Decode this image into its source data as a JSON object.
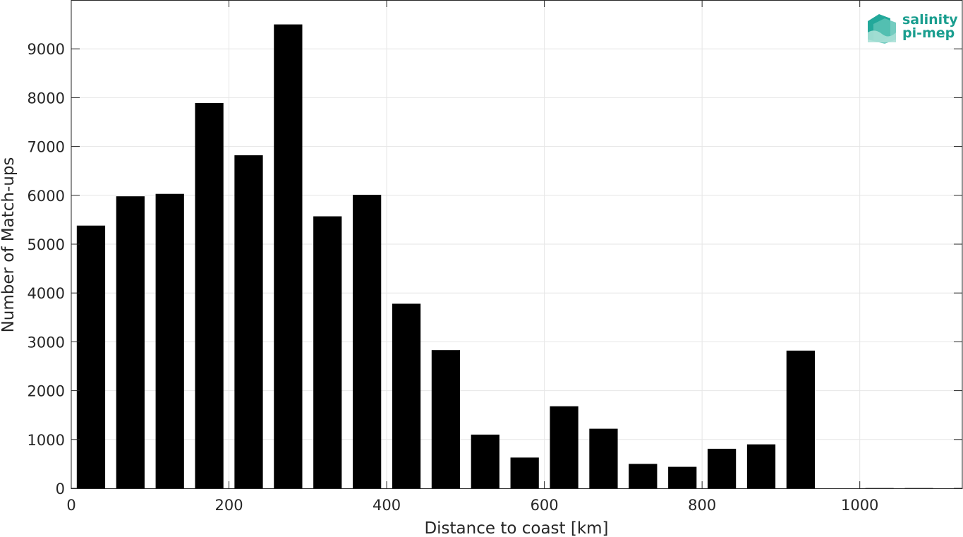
{
  "chart_data": {
    "type": "bar",
    "title": "",
    "xlabel": "Distance to coast [km]",
    "ylabel": "Number of Match-ups",
    "x": [
      25,
      75,
      125,
      175,
      225,
      275,
      325,
      375,
      425,
      475,
      525,
      575,
      625,
      675,
      725,
      775,
      825,
      875,
      925,
      975,
      1025,
      1075
    ],
    "values": [
      5380,
      5980,
      6030,
      7890,
      6820,
      9500,
      5570,
      6010,
      3780,
      2830,
      1100,
      630,
      1680,
      1220,
      500,
      440,
      810,
      900,
      2820,
      0,
      5,
      5
    ],
    "bar_width": 36,
    "xlim": [
      0,
      1130
    ],
    "ylim": [
      0,
      10000
    ],
    "xticks": [
      0,
      200,
      400,
      600,
      800,
      1000
    ],
    "yticks": [
      0,
      1000,
      2000,
      3000,
      4000,
      5000,
      6000,
      7000,
      8000,
      9000
    ],
    "bar_color": "#000000",
    "grid": true,
    "legend": "none"
  },
  "logo": {
    "line1": "salinity",
    "line2": "pi-mep",
    "color": "#1a9e8f"
  }
}
